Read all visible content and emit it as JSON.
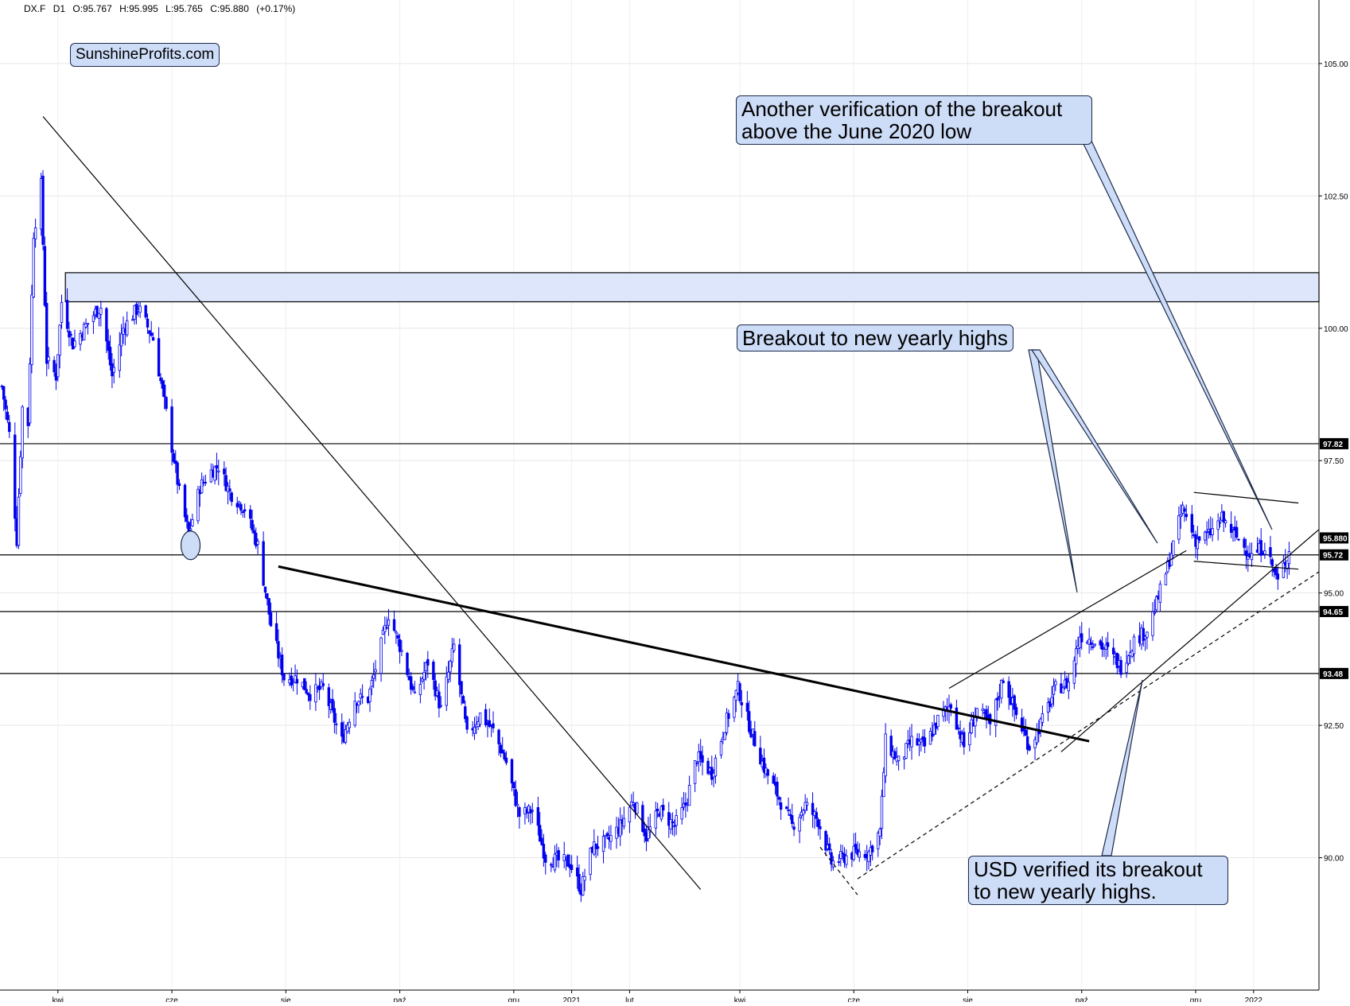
{
  "header": {
    "symbol": "DX.F",
    "timeframe": "D1",
    "open": "O:95.767",
    "high": "H:95.995",
    "low": "L:95.765",
    "close": "C:95.880",
    "change": "(+0.17%)"
  },
  "watermark": "SunshineProfits.com",
  "annotations": {
    "top_callout": "Another verification of the breakout\nabove the June 2020 low",
    "middle_callout": "Breakout to new yearly highs",
    "bottom_callout": "USD verified its breakout\nto new yearly highs."
  },
  "colors": {
    "candles": "#0000ee",
    "zone_fill": "#dde6fb",
    "callout_fill": "#cddcf7",
    "label_bg": "#000000"
  },
  "chart_data": {
    "type": "candlestick",
    "series_color": "#0000ee",
    "ylim": [
      87.5,
      106.2
    ],
    "y_ticks": [
      "105.00",
      "102.50",
      "100.00",
      "97.50",
      "95.00",
      "92.50",
      "90.00"
    ],
    "y_tick_values": [
      105.0,
      102.5,
      100.0,
      97.5,
      95.0,
      92.5,
      90.0
    ],
    "x_ticks": [
      "kwi",
      "cze",
      "sie",
      "paź",
      "gru",
      "2021",
      "lut",
      "kwi",
      "cze",
      "sie",
      "paź",
      "gru",
      "2022"
    ],
    "x_tick_dates": [
      "2020-04-01",
      "2020-06-01",
      "2020-08-01",
      "2020-10-01",
      "2020-12-01",
      "2021-01-01",
      "2021-02-01",
      "2021-04-01",
      "2021-06-01",
      "2021-08-01",
      "2021-10-01",
      "2021-12-01",
      "2022-01-01"
    ],
    "x_range": [
      "2020-03-01",
      "2022-02-05"
    ],
    "last_price": 95.88,
    "last_price_label": "95.880",
    "horizontal_levels": [
      {
        "value": 97.82,
        "label": "97.82"
      },
      {
        "value": 95.72,
        "label": "95.72"
      },
      {
        "value": 94.65,
        "label": "94.65"
      },
      {
        "value": 93.48,
        "label": "93.48"
      }
    ],
    "resistance_zone": [
      100.5,
      101.05
    ],
    "price_path": [
      [
        "2020-03-02",
        98.9
      ],
      [
        "2020-03-06",
        98.0
      ],
      [
        "2020-03-10",
        96.0
      ],
      [
        "2020-03-13",
        98.5
      ],
      [
        "2020-03-16",
        98.2
      ],
      [
        "2020-03-19",
        101.8
      ],
      [
        "2020-03-23",
        102.7
      ],
      [
        "2020-03-26",
        99.4
      ],
      [
        "2020-03-31",
        99.1
      ],
      [
        "2020-04-03",
        100.5
      ],
      [
        "2020-04-09",
        99.7
      ],
      [
        "2020-04-15",
        100.0
      ],
      [
        "2020-04-21",
        100.3
      ],
      [
        "2020-04-24",
        100.4
      ],
      [
        "2020-04-30",
        99.1
      ],
      [
        "2020-05-06",
        100.0
      ],
      [
        "2020-05-14",
        100.4
      ],
      [
        "2020-05-22",
        99.8
      ],
      [
        "2020-05-29",
        98.4
      ],
      [
        "2020-06-05",
        96.9
      ],
      [
        "2020-06-10",
        96.1
      ],
      [
        "2020-06-16",
        97.0
      ],
      [
        "2020-06-22",
        97.3
      ],
      [
        "2020-06-26",
        97.4
      ],
      [
        "2020-07-02",
        96.9
      ],
      [
        "2020-07-10",
        96.6
      ],
      [
        "2020-07-17",
        95.9
      ],
      [
        "2020-07-24",
        94.4
      ],
      [
        "2020-07-31",
        93.4
      ],
      [
        "2020-08-07",
        93.4
      ],
      [
        "2020-08-14",
        93.1
      ],
      [
        "2020-08-21",
        93.2
      ],
      [
        "2020-08-31",
        92.2
      ],
      [
        "2020-09-07",
        93.0
      ],
      [
        "2020-09-14",
        93.0
      ],
      [
        "2020-09-25",
        94.6
      ],
      [
        "2020-10-02",
        93.9
      ],
      [
        "2020-10-09",
        93.0
      ],
      [
        "2020-10-16",
        93.7
      ],
      [
        "2020-10-23",
        92.8
      ],
      [
        "2020-10-30",
        94.0
      ],
      [
        "2020-11-06",
        92.3
      ],
      [
        "2020-11-13",
        92.7
      ],
      [
        "2020-11-20",
        92.4
      ],
      [
        "2020-11-27",
        91.8
      ],
      [
        "2020-12-04",
        90.8
      ],
      [
        "2020-12-11",
        90.9
      ],
      [
        "2020-12-18",
        90.0
      ],
      [
        "2020-12-31",
        89.9
      ],
      [
        "2021-01-06",
        89.4
      ],
      [
        "2021-01-12",
        90.2
      ],
      [
        "2021-01-20",
        90.3
      ],
      [
        "2021-01-27",
        90.6
      ],
      [
        "2021-02-03",
        91.1
      ],
      [
        "2021-02-10",
        90.4
      ],
      [
        "2021-02-17",
        90.9
      ],
      [
        "2021-02-25",
        90.6
      ],
      [
        "2021-03-03",
        91.0
      ],
      [
        "2021-03-09",
        91.9
      ],
      [
        "2021-03-17",
        91.6
      ],
      [
        "2021-03-24",
        92.5
      ],
      [
        "2021-03-31",
        93.2
      ],
      [
        "2021-04-07",
        92.4
      ],
      [
        "2021-04-14",
        91.7
      ],
      [
        "2021-04-21",
        91.2
      ],
      [
        "2021-04-29",
        90.6
      ],
      [
        "2021-05-06",
        91.0
      ],
      [
        "2021-05-13",
        90.7
      ],
      [
        "2021-05-20",
        89.9
      ],
      [
        "2021-05-26",
        90.0
      ],
      [
        "2021-06-02",
        90.1
      ],
      [
        "2021-06-09",
        90.1
      ],
      [
        "2021-06-15",
        90.5
      ],
      [
        "2021-06-18",
        92.2
      ],
      [
        "2021-06-25",
        91.8
      ],
      [
        "2021-07-02",
        92.2
      ],
      [
        "2021-07-09",
        92.1
      ],
      [
        "2021-07-16",
        92.6
      ],
      [
        "2021-07-23",
        92.9
      ],
      [
        "2021-07-30",
        92.1
      ],
      [
        "2021-08-06",
        92.8
      ],
      [
        "2021-08-13",
        92.5
      ],
      [
        "2021-08-20",
        93.4
      ],
      [
        "2021-08-27",
        92.7
      ],
      [
        "2021-09-03",
        92.1
      ],
      [
        "2021-09-10",
        92.6
      ],
      [
        "2021-09-17",
        93.2
      ],
      [
        "2021-09-24",
        93.3
      ],
      [
        "2021-09-30",
        94.2
      ],
      [
        "2021-10-08",
        94.1
      ],
      [
        "2021-10-15",
        93.9
      ],
      [
        "2021-10-22",
        93.6
      ],
      [
        "2021-10-29",
        94.1
      ],
      [
        "2021-11-05",
        94.3
      ],
      [
        "2021-11-10",
        94.8
      ],
      [
        "2021-11-16",
        95.5
      ],
      [
        "2021-11-24",
        96.6
      ],
      [
        "2021-12-01",
        96.0
      ],
      [
        "2021-12-08",
        96.1
      ],
      [
        "2021-12-15",
        96.4
      ],
      [
        "2021-12-22",
        96.1
      ],
      [
        "2021-12-31",
        95.7
      ],
      [
        "2022-01-07",
        95.9
      ],
      [
        "2022-01-14",
        95.2
      ],
      [
        "2022-01-19",
        95.7
      ],
      [
        "2022-01-21",
        95.88
      ]
    ],
    "trendlines": [
      {
        "style": "thin",
        "from": [
          "2020-03-24",
          104.0
        ],
        "to": [
          "2021-03-11",
          89.4
        ]
      },
      {
        "style": "thick",
        "from": [
          "2020-07-28",
          95.5
        ],
        "to": [
          "2021-10-05",
          92.2
        ]
      },
      {
        "style": "thin",
        "from": [
          "2021-07-22",
          93.2
        ],
        "to": [
          "2021-11-26",
          95.8
        ]
      },
      {
        "style": "thin",
        "from": [
          "2021-09-20",
          92.0
        ],
        "to": [
          "2022-02-05",
          96.2
        ]
      },
      {
        "style": "dashed",
        "from": [
          "2021-06-03",
          89.6
        ],
        "to": [
          "2022-02-05",
          95.4
        ]
      },
      {
        "style": "dashed",
        "from": [
          "2021-05-14",
          90.2
        ],
        "to": [
          "2021-06-03",
          89.3
        ]
      },
      {
        "style": "thin",
        "from": [
          "2021-11-30",
          96.9
        ],
        "to": [
          "2022-01-25",
          96.7
        ]
      },
      {
        "style": "thin",
        "from": [
          "2021-11-30",
          95.6
        ],
        "to": [
          "2022-01-25",
          95.45
        ]
      }
    ],
    "highlight_circle": [
      "2020-06-11",
      95.9
    ]
  }
}
